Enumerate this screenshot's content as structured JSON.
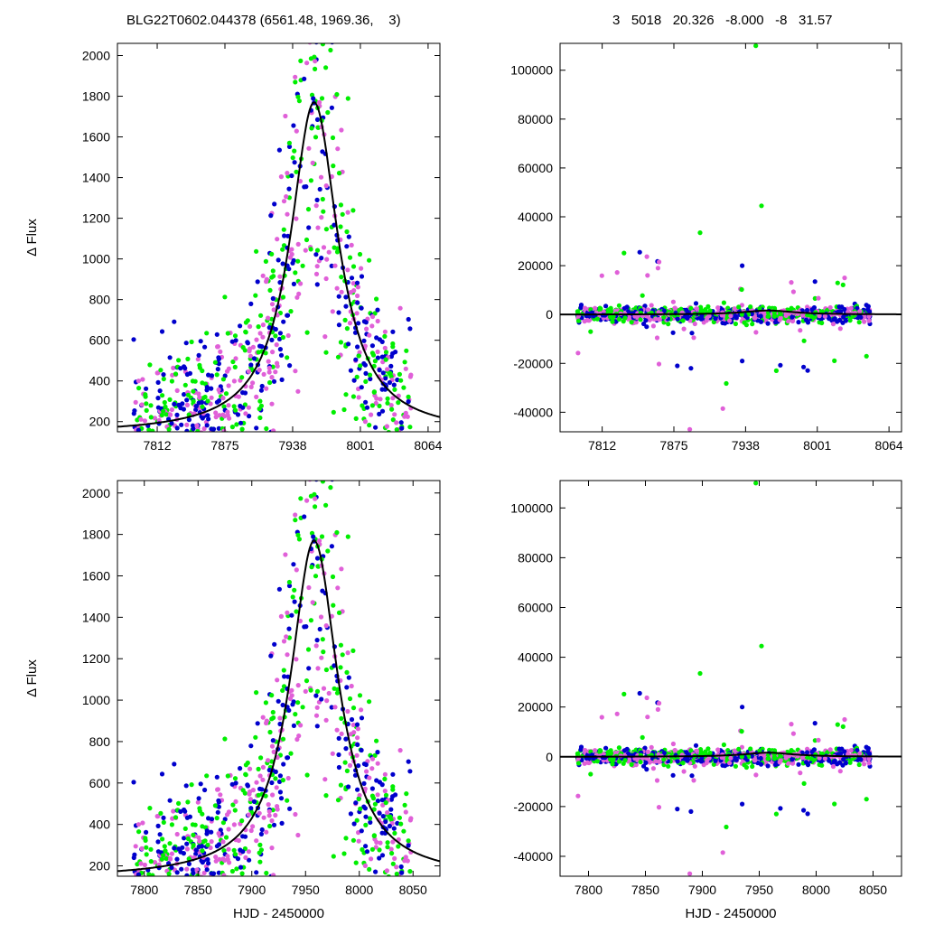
{
  "header": {
    "left_title": "BLG22T0602.044378 (6561.48, 1969.36,    3)",
    "right_title": "3   5018   20.326   -8.000   -8   31.57"
  },
  "colors": {
    "green": "#00ee00",
    "blue": "#0000cc",
    "pink": "#e060d8",
    "model": "#000000"
  },
  "chart_data": [
    {
      "type": "scatter",
      "panel": "top-left",
      "title": "",
      "xlabel": "",
      "ylabel": "Δ Flux",
      "xlim": [
        7775,
        8075
      ],
      "ylim": [
        150,
        2060
      ],
      "xticks": [
        7812,
        7875,
        7938,
        8001,
        8064
      ],
      "yticks": [
        200,
        400,
        600,
        800,
        1000,
        1200,
        1400,
        1600,
        1800,
        2000
      ],
      "model": {
        "t0": 7958,
        "amplitude": 1630,
        "width": 27,
        "baseline": 140
      },
      "series_colors": [
        "green",
        "blue",
        "pink"
      ]
    },
    {
      "type": "scatter",
      "panel": "top-right",
      "title": "",
      "xlabel": "",
      "ylabel": "",
      "xlim": [
        7775,
        8075
      ],
      "ylim": [
        -48000,
        111000
      ],
      "xticks": [
        7812,
        7875,
        7938,
        8001,
        8064
      ],
      "yticks": [
        -40000,
        -20000,
        0,
        20000,
        40000,
        60000,
        80000,
        100000
      ],
      "model": {
        "t0": 7958,
        "amplitude": 1630,
        "width": 27,
        "baseline": 0
      },
      "series_colors": [
        "green",
        "blue",
        "pink"
      ]
    },
    {
      "type": "scatter",
      "panel": "bottom-left",
      "title": "",
      "xlabel": "HJD - 2450000",
      "ylabel": "Δ Flux",
      "xlim": [
        7775,
        8075
      ],
      "ylim": [
        150,
        2060
      ],
      "xticks": [
        7800,
        7850,
        7900,
        7950,
        8000,
        8050
      ],
      "yticks": [
        200,
        400,
        600,
        800,
        1000,
        1200,
        1400,
        1600,
        1800,
        2000
      ],
      "model": {
        "t0": 7958,
        "amplitude": 1630,
        "width": 27,
        "baseline": 140
      },
      "series_colors": [
        "green",
        "blue",
        "pink"
      ]
    },
    {
      "type": "scatter",
      "panel": "bottom-right",
      "title": "",
      "xlabel": "HJD - 2450000",
      "ylabel": "",
      "xlim": [
        7775,
        8075
      ],
      "ylim": [
        -48000,
        111000
      ],
      "xticks": [
        7800,
        7850,
        7900,
        7950,
        8000,
        8050
      ],
      "yticks": [
        -40000,
        -20000,
        0,
        20000,
        40000,
        60000,
        80000,
        100000
      ],
      "model": {
        "t0": 7958,
        "amplitude": 1630,
        "width": 27,
        "baseline": 0
      },
      "series_colors": [
        "green",
        "blue",
        "pink"
      ]
    }
  ]
}
